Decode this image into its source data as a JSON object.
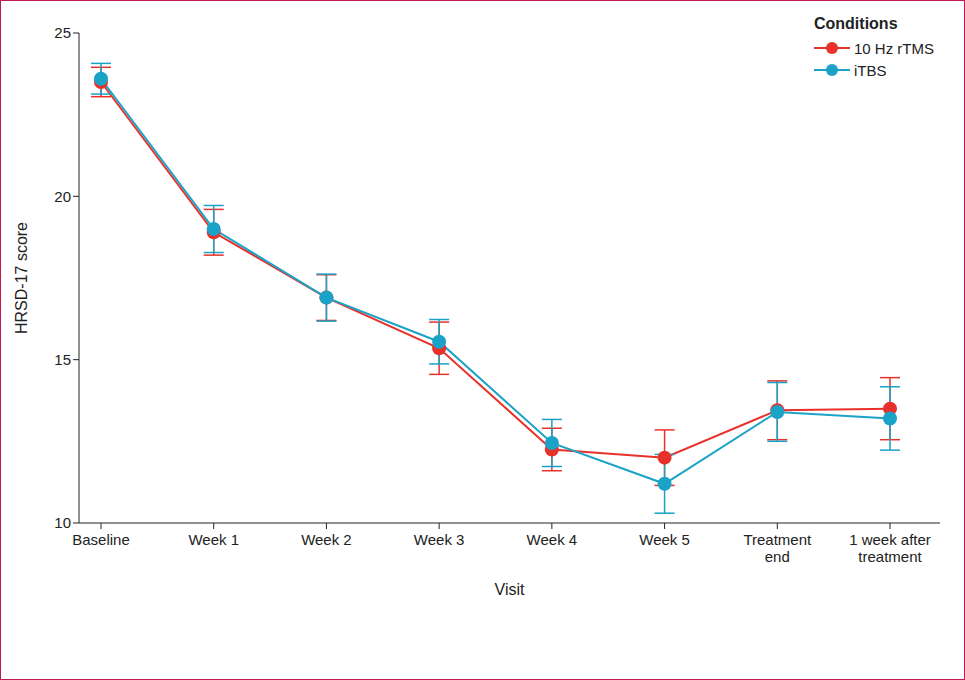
{
  "chart_data": {
    "type": "line",
    "x_label": "Visit",
    "y_label": "HRSD-17 score",
    "legend_title": "Conditions",
    "categories": [
      "Baseline",
      "Week 1",
      "Week 2",
      "Week 3",
      "Week 4",
      "Week 5",
      "Treatment end",
      "1 week after treatment"
    ],
    "series": [
      {
        "name": "10 Hz rTMS",
        "color": "#e8312b",
        "marker": "circle",
        "values": [
          23.5,
          18.9,
          16.9,
          15.35,
          12.25,
          12.0,
          13.45,
          13.5
        ],
        "errors": [
          0.45,
          0.7,
          0.7,
          0.8,
          0.65,
          0.85,
          0.9,
          0.95
        ]
      },
      {
        "name": "iTBS",
        "color": "#1aa3c6",
        "marker": "circle",
        "values": [
          23.6,
          19.0,
          16.9,
          15.55,
          12.45,
          11.2,
          13.4,
          13.2
        ],
        "errors": [
          0.47,
          0.72,
          0.72,
          0.68,
          0.72,
          0.9,
          0.9,
          0.97
        ]
      }
    ],
    "ylim": [
      10,
      25
    ],
    "yticks": [
      10,
      15,
      20,
      25
    ],
    "grid": false,
    "legend": "upper right"
  }
}
